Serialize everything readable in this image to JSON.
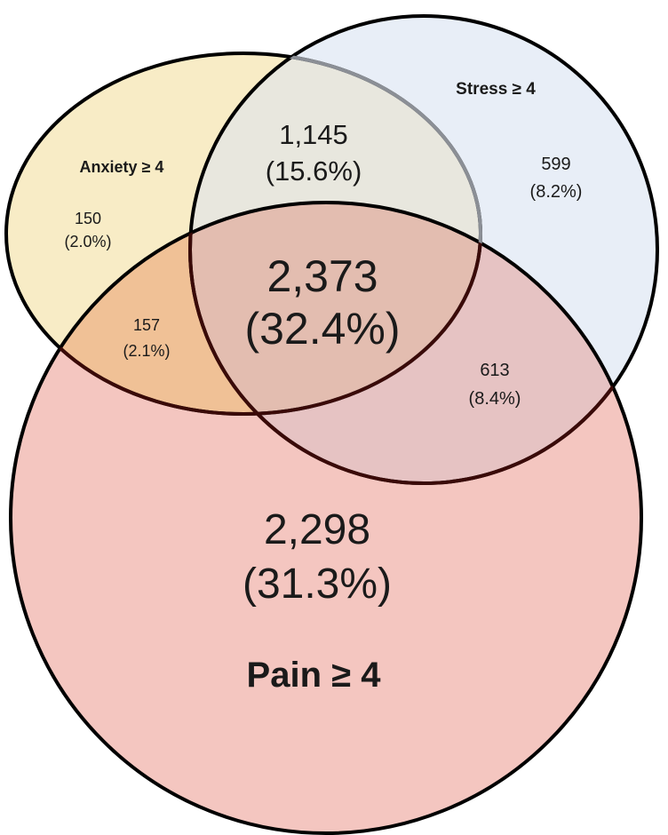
{
  "sets": {
    "anxiety": {
      "label": "Anxiety ≥ 4",
      "fill": "#f8ecc6"
    },
    "stress": {
      "label": "Stress ≥ 4",
      "fill": "#e8eef7"
    },
    "pain": {
      "label": "Pain ≥ 4",
      "fill": "#f4c6c0"
    }
  },
  "regions": {
    "anxiety_only": {
      "count": "150",
      "pct": "(2.0%)"
    },
    "stress_only": {
      "count": "599",
      "pct": "(8.2%)"
    },
    "anxiety_stress": {
      "count": "1,145",
      "pct": "(15.6%)"
    },
    "anxiety_pain": {
      "count": "157",
      "pct": "(2.1%)"
    },
    "stress_pain": {
      "count": "613",
      "pct": "(8.4%)"
    },
    "pain_only": {
      "count": "2,298",
      "pct": "(31.3%)"
    },
    "all_three": {
      "count": "2,373",
      "pct": "(32.4%)"
    }
  },
  "colors": {
    "outline": "#000000",
    "text": "#1a1a1a"
  }
}
